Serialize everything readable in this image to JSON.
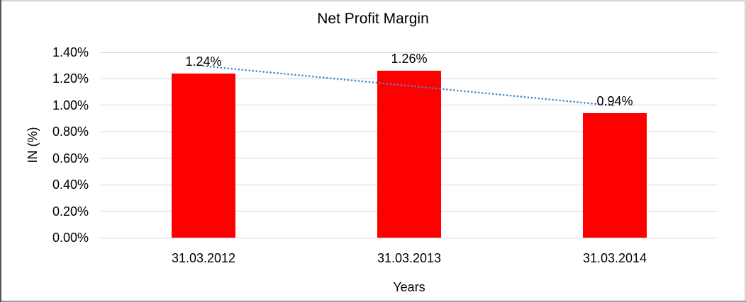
{
  "chart_data": {
    "type": "bar",
    "title": "Net Profit Margin",
    "categories": [
      "31.03.2012",
      "31.03.2013",
      "31.03.2014"
    ],
    "series": [
      {
        "name": "Net Profit Margin",
        "values": [
          1.24,
          1.26,
          0.94
        ],
        "labels": [
          "1.24%",
          "1.26%",
          "0.94%"
        ],
        "color": "#ff0000"
      }
    ],
    "xlabel": "Years",
    "ylabel": "IN (%)",
    "ylim": [
      0,
      1.4
    ],
    "yticks": [
      {
        "v": 0.0,
        "label": "0.00%"
      },
      {
        "v": 0.2,
        "label": "0.20%"
      },
      {
        "v": 0.4,
        "label": "0.40%"
      },
      {
        "v": 0.6,
        "label": "0.60%"
      },
      {
        "v": 0.8,
        "label": "0.80%"
      },
      {
        "v": 1.0,
        "label": "1.00%"
      },
      {
        "v": 1.2,
        "label": "1.20%"
      },
      {
        "v": 1.4,
        "label": "1.40%"
      }
    ],
    "grid": true,
    "legend": "none",
    "gridline_color": "#d6d6d6",
    "trendline": {
      "kind": "linear",
      "style": "dotted",
      "color": "#4a86c8",
      "series": 0
    }
  }
}
